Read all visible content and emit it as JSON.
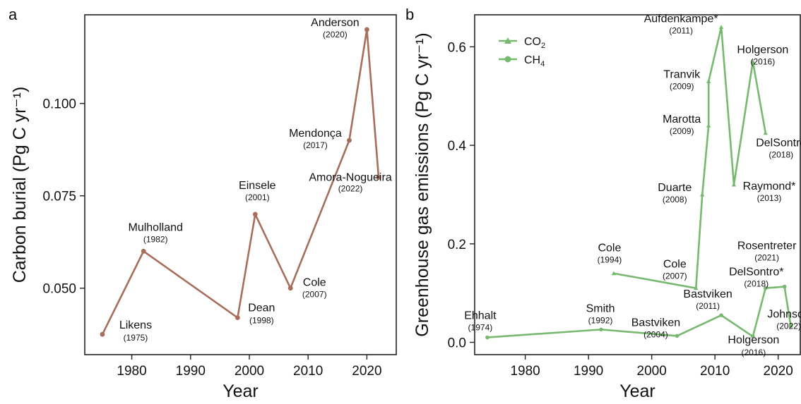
{
  "chart_data": [
    {
      "panel": "a",
      "type": "line",
      "title": "",
      "xlabel": "Year",
      "ylabel": "Carbon burial (Pg C yr⁻¹)",
      "xlim": [
        1972,
        2025
      ],
      "ylim": [
        0.032,
        0.124
      ],
      "xticks": [
        1980,
        1990,
        2000,
        2010,
        2020
      ],
      "yticks": [
        0.05,
        0.075,
        0.1
      ],
      "ytick_labels": [
        "0.050",
        "0.075",
        "0.100"
      ],
      "grid": false,
      "color": "#a86e5c",
      "series": [
        {
          "points": [
            {
              "x": 1975,
              "y": 0.0375,
              "name": "Likens",
              "year": "(1975)"
            },
            {
              "x": 1982,
              "y": 0.06,
              "name": "Mulholland",
              "year": "(1982)"
            },
            {
              "x": 1998,
              "y": 0.042,
              "name": "Dean",
              "year": "(1998)"
            },
            {
              "x": 2001,
              "y": 0.07,
              "name": "Einsele",
              "year": "(2001)"
            },
            {
              "x": 2007,
              "y": 0.05,
              "name": "Cole",
              "year": "(2007)"
            },
            {
              "x": 2017,
              "y": 0.09,
              "name": "Mendonça",
              "year": "(2017)"
            },
            {
              "x": 2020,
              "y": 0.12,
              "name": "Anderson",
              "year": "(2020)"
            },
            {
              "x": 2022,
              "y": 0.08,
              "name": "Amora-Nogueira",
              "year": "(2022)"
            }
          ]
        }
      ]
    },
    {
      "panel": "b",
      "type": "line",
      "title": "",
      "xlabel": "Year",
      "ylabel": "Greenhouse gas emissions (Pg C yr⁻¹)",
      "xlim": [
        1972,
        2023.5
      ],
      "ylim": [
        -0.025,
        0.665
      ],
      "xticks": [
        1980,
        1990,
        2000,
        2010,
        2020
      ],
      "yticks": [
        0.0,
        0.2,
        0.4,
        0.6
      ],
      "ytick_labels": [
        "0.0",
        "0.2",
        "0.4",
        "0.6"
      ],
      "grid": false,
      "color": "#77b96f",
      "legend": {
        "placement": "top-left",
        "entries": [
          {
            "label": "CO",
            "sub": "2",
            "marker": "triangle"
          },
          {
            "label": "CH",
            "sub": "4",
            "marker": "circle"
          }
        ]
      },
      "series": [
        {
          "name": "CO2",
          "marker": "triangle",
          "points": [
            {
              "x": 1994,
              "y": 0.14,
              "name": "Cole",
              "year": "(1994)"
            },
            {
              "x": 2007,
              "y": 0.11,
              "name": "Cole",
              "year": "(2007)"
            },
            {
              "x": 2008,
              "y": 0.3,
              "name": "Duarte",
              "year": "(2008)"
            },
            {
              "x": 2009,
              "y": 0.44,
              "name": "Marotta",
              "year": "(2009)"
            },
            {
              "x": 2009,
              "y": 0.53,
              "name": "Tranvik",
              "year": "(2009)"
            },
            {
              "x": 2011,
              "y": 0.64,
              "name": "Aufdenkampe*",
              "year": "(2011)"
            },
            {
              "x": 2013,
              "y": 0.32,
              "name": "Raymond*",
              "year": "(2013)"
            },
            {
              "x": 2016,
              "y": 0.57,
              "name": "Holgerson",
              "year": "(2016)"
            },
            {
              "x": 2018,
              "y": 0.425,
              "name": "DelSontro",
              "year": "(2018)"
            }
          ]
        },
        {
          "name": "CH4",
          "marker": "circle",
          "points": [
            {
              "x": 1974,
              "y": 0.01,
              "name": "Ehhalt",
              "year": "(1974)"
            },
            {
              "x": 1992,
              "y": 0.026,
              "name": "Smith",
              "year": "(1992)"
            },
            {
              "x": 2004,
              "y": 0.013,
              "name": "Bastviken",
              "year": "(2004)"
            },
            {
              "x": 2011,
              "y": 0.055,
              "name": "Bastviken",
              "year": "(2011)"
            },
            {
              "x": 2016,
              "y": 0.012,
              "name": "Holgerson",
              "year": "(2016)"
            },
            {
              "x": 2018,
              "y": 0.11,
              "name": "DelSontro*",
              "year": "(2018)"
            },
            {
              "x": 2021,
              "y": 0.113,
              "name": "Rosentreter",
              "year": "(2021)"
            },
            {
              "x": 2022,
              "y": 0.033,
              "name": "Johnson",
              "year": "(2022)"
            }
          ]
        }
      ]
    }
  ]
}
